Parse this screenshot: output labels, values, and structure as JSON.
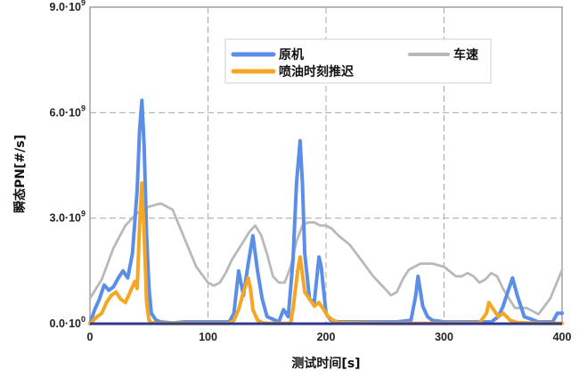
{
  "chart_data": {
    "type": "line",
    "title": "",
    "xlabel": "测试时间[s]",
    "ylabel": "瞬态PN[#/s]",
    "xlim": [
      0,
      400
    ],
    "ylim": [
      0,
      9000000000
    ],
    "x_ticks": [
      0,
      100,
      200,
      300,
      400
    ],
    "y_ticks": [
      {
        "value": 0,
        "mantissa": "0.0·10",
        "exp": "0"
      },
      {
        "value": 3000000000,
        "mantissa": "3.0·10",
        "exp": "9"
      },
      {
        "value": 6000000000,
        "mantissa": "6.0·10",
        "exp": "9"
      },
      {
        "value": 9000000000,
        "mantissa": "9.0·10",
        "exp": "9"
      }
    ],
    "grid": true,
    "legend_position": "top-center",
    "series": [
      {
        "name": "原机",
        "color": "#5b8ee6",
        "axis": "primary",
        "x": [
          0,
          4,
          8,
          12,
          16,
          20,
          24,
          28,
          32,
          36,
          40,
          42,
          44,
          46,
          48,
          50,
          52,
          56,
          60,
          70,
          80,
          100,
          118,
          122,
          126,
          130,
          134,
          138,
          142,
          146,
          150,
          160,
          164,
          168,
          172,
          175,
          178,
          180,
          182,
          186,
          190,
          194,
          196,
          200,
          204,
          210,
          230,
          260,
          272,
          276,
          278,
          282,
          286,
          290,
          300,
          320,
          340,
          346,
          350,
          354,
          358,
          362,
          368,
          380,
          392,
          396,
          400
        ],
        "y": [
          0,
          400000000,
          700000000,
          1100000000,
          950000000,
          1050000000,
          1300000000,
          1500000000,
          1300000000,
          2000000000,
          3800000000,
          5500000000,
          6350000000,
          5000000000,
          2500000000,
          1000000000,
          300000000,
          100000000,
          50000000,
          20000000,
          50000000,
          50000000,
          50000000,
          300000000,
          1500000000,
          800000000,
          1700000000,
          2500000000,
          1500000000,
          700000000,
          200000000,
          50000000,
          400000000,
          200000000,
          1800000000,
          4000000000,
          5200000000,
          4000000000,
          2000000000,
          700000000,
          600000000,
          1900000000,
          1600000000,
          300000000,
          100000000,
          50000000,
          50000000,
          50000000,
          100000000,
          800000000,
          1350000000,
          500000000,
          200000000,
          100000000,
          50000000,
          50000000,
          50000000,
          200000000,
          500000000,
          900000000,
          1300000000,
          800000000,
          200000000,
          50000000,
          50000000,
          300000000,
          300000000
        ]
      },
      {
        "name": "喷油时刻推迟",
        "color": "#f5a623",
        "axis": "primary",
        "x": [
          0,
          6,
          10,
          14,
          18,
          22,
          26,
          30,
          34,
          38,
          40,
          42,
          44,
          46,
          48,
          50,
          52,
          56,
          60,
          80,
          100,
          118,
          122,
          126,
          130,
          134,
          136,
          138,
          142,
          146,
          150,
          170,
          172,
          176,
          178,
          180,
          182,
          186,
          190,
          194,
          198,
          202,
          206,
          210,
          250,
          300,
          330,
          336,
          338,
          342,
          346,
          350,
          356,
          362,
          380,
          400
        ],
        "y": [
          0,
          200000000,
          300000000,
          600000000,
          800000000,
          900000000,
          700000000,
          600000000,
          900000000,
          1200000000,
          1000000000,
          2800000000,
          4000000000,
          2500000000,
          600000000,
          100000000,
          30000000,
          10000000,
          10000000,
          10000000,
          10000000,
          10000000,
          100000000,
          400000000,
          900000000,
          1300000000,
          1000000000,
          400000000,
          100000000,
          30000000,
          10000000,
          10000000,
          400000000,
          1500000000,
          1900000000,
          1400000000,
          900000000,
          700000000,
          500000000,
          600000000,
          400000000,
          200000000,
          100000000,
          30000000,
          10000000,
          10000000,
          20000000,
          300000000,
          600000000,
          400000000,
          200000000,
          300000000,
          100000000,
          30000000,
          10000000,
          10000000
        ]
      },
      {
        "name": "车速",
        "color": "#b9b9b9",
        "axis": "secondary",
        "x": [
          0,
          10,
          20,
          30,
          40,
          50,
          60,
          70,
          80,
          90,
          100,
          105,
          110,
          115,
          120,
          125,
          130,
          135,
          140,
          145,
          150,
          155,
          160,
          165,
          170,
          175,
          180,
          185,
          190,
          195,
          200,
          205,
          210,
          220,
          230,
          240,
          250,
          255,
          260,
          265,
          270,
          280,
          290,
          300,
          310,
          315,
          320,
          325,
          330,
          335,
          340,
          345,
          350,
          355,
          360,
          370,
          380,
          390,
          400
        ],
        "y": [
          0.08,
          0.14,
          0.24,
          0.31,
          0.35,
          0.37,
          0.38,
          0.36,
          0.27,
          0.18,
          0.13,
          0.12,
          0.13,
          0.16,
          0.2,
          0.23,
          0.26,
          0.29,
          0.31,
          0.28,
          0.22,
          0.15,
          0.13,
          0.13,
          0.18,
          0.26,
          0.31,
          0.32,
          0.32,
          0.31,
          0.31,
          0.3,
          0.28,
          0.25,
          0.2,
          0.15,
          0.11,
          0.09,
          0.1,
          0.14,
          0.17,
          0.19,
          0.19,
          0.18,
          0.15,
          0.15,
          0.16,
          0.15,
          0.13,
          0.14,
          0.16,
          0.15,
          0.11,
          0.08,
          0.05,
          0.05,
          0.03,
          0.08,
          0.17
        ]
      }
    ]
  }
}
